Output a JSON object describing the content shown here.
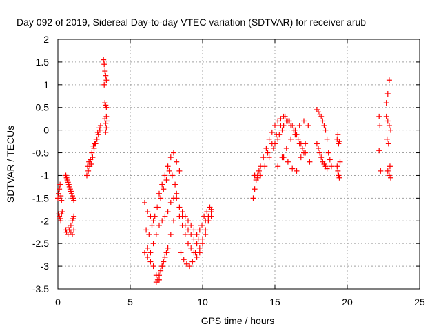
{
  "chart_data": {
    "type": "scatter",
    "title": "Day 092 of 2019, Sidereal Day-to-day VTEC variation (SDTVAR) for receiver arub",
    "xlabel": "GPS time / hours",
    "ylabel": "SDTVAR / TECUs",
    "xlim": [
      0,
      25
    ],
    "ylim": [
      -3.5,
      2
    ],
    "xticks": [
      0,
      5,
      10,
      15,
      20,
      25
    ],
    "xtick_labels": [
      "0",
      "5",
      "10",
      "15",
      "20",
      "25"
    ],
    "yticks": [
      -3.5,
      -3,
      -2.5,
      -2,
      -1.5,
      -1,
      -0.5,
      0,
      0.5,
      1,
      1.5,
      2
    ],
    "ytick_labels": [
      "-3.5",
      "-3",
      "-2.5",
      "-2",
      "-1.5",
      "-1",
      "-0.5",
      "0",
      "0.5",
      "1",
      "1.5",
      "2"
    ],
    "grid": true,
    "marker": "+",
    "color": "#ff0000",
    "series": [
      {
        "name": "SDTVAR",
        "x": [
          0.0,
          0.05,
          0.1,
          0.15,
          0.2,
          0.25,
          0.05,
          0.1,
          0.15,
          0.2,
          0.25,
          0.3,
          0.55,
          0.6,
          0.65,
          0.7,
          0.75,
          0.8,
          0.85,
          0.9,
          0.95,
          1.0,
          1.05,
          1.1,
          0.55,
          0.6,
          0.7,
          0.8,
          0.9,
          1.0,
          1.05,
          1.1,
          0.7,
          0.8,
          0.9,
          1.0,
          1.1,
          2.0,
          2.1,
          2.2,
          2.3,
          2.4,
          2.5,
          2.6,
          2.7,
          2.8,
          2.9,
          2.05,
          2.15,
          2.25,
          2.35,
          2.45,
          2.55,
          2.65,
          2.75,
          2.85,
          2.95,
          3.15,
          3.2,
          3.25,
          3.3,
          3.35,
          3.2,
          3.25,
          3.3,
          3.35,
          3.25,
          3.3,
          3.35,
          3.3,
          3.35,
          3.4,
          6.0,
          6.2,
          6.4,
          6.6,
          6.8,
          7.0,
          7.2,
          7.4,
          7.6,
          7.8,
          8.0,
          8.2,
          8.4,
          6.1,
          6.3,
          6.5,
          6.7,
          6.9,
          7.1,
          7.3,
          7.5,
          7.7,
          7.9,
          8.1,
          6.0,
          6.2,
          6.4,
          6.6,
          6.8,
          7.0,
          7.2,
          7.4,
          7.6,
          7.8,
          8.0,
          6.2,
          6.4,
          6.6,
          6.8,
          7.0,
          7.2,
          7.4,
          7.6,
          7.8,
          8.0,
          8.2,
          6.8,
          6.9,
          7.0,
          7.1,
          7.2,
          7.3,
          7.4,
          7.5,
          8.4,
          8.6,
          8.8,
          9.0,
          9.2,
          9.4,
          9.6,
          9.8,
          10.0,
          10.2,
          10.4,
          10.6,
          8.2,
          8.4,
          8.6,
          8.8,
          9.0,
          9.2,
          9.4,
          9.6,
          9.8,
          10.0,
          10.2,
          10.4,
          10.6,
          8.5,
          8.7,
          8.9,
          9.1,
          9.3,
          9.5,
          9.7,
          9.9,
          10.1,
          10.3,
          10.5,
          8.6,
          8.8,
          9.0,
          9.2,
          9.4,
          9.6,
          9.8,
          10.0,
          10.2,
          10.4,
          10.6,
          13.5,
          13.6,
          13.7,
          13.8,
          13.9,
          14.0,
          14.2,
          14.4,
          14.6,
          14.8,
          15.0,
          15.2,
          15.4,
          15.6,
          13.6,
          13.8,
          14.0,
          14.3,
          14.6,
          14.9,
          15.2,
          15.5,
          15.8,
          16.1,
          16.4,
          16.7,
          17.0,
          14.5,
          14.8,
          15.1,
          15.4,
          15.7,
          16.0,
          16.3,
          16.6,
          16.9,
          15.0,
          15.3,
          15.6,
          15.9,
          16.2,
          16.5,
          16.8,
          17.1,
          17.4,
          15.2,
          15.5,
          15.8,
          16.1,
          16.4,
          16.7,
          17.0,
          17.3,
          15.6,
          15.9,
          16.2,
          16.5,
          16.8,
          17.1,
          17.9,
          18.0,
          18.1,
          18.2,
          18.3,
          18.4,
          18.5,
          18.6,
          18.7,
          18.8,
          18.9,
          17.9,
          18.0,
          18.1,
          18.2,
          18.3,
          18.4,
          18.5,
          18.6,
          19.3,
          19.35,
          19.4,
          19.45,
          19.3,
          19.35,
          19.4,
          19.45,
          19.5,
          22.2,
          22.25,
          22.2,
          22.3,
          22.7,
          22.8,
          22.9,
          23.0,
          22.75,
          22.85,
          22.95,
          22.8,
          22.9,
          23.0,
          22.7,
          22.8,
          22.9
        ],
        "y": [
          -1.5,
          -1.4,
          -1.3,
          -1.2,
          -1.45,
          -1.55,
          -1.85,
          -1.9,
          -1.95,
          -2.0,
          -1.85,
          -1.8,
          -1.0,
          -1.05,
          -1.1,
          -1.15,
          -1.2,
          -1.25,
          -1.3,
          -1.35,
          -1.4,
          -1.45,
          -1.5,
          -1.55,
          -2.2,
          -2.25,
          -2.3,
          -2.2,
          -2.1,
          -2.0,
          -1.95,
          -1.9,
          -2.15,
          -2.2,
          -2.25,
          -2.3,
          -2.2,
          -1.0,
          -0.9,
          -0.8,
          -0.75,
          -0.6,
          -0.4,
          -0.3,
          -0.2,
          -0.1,
          0.0,
          -0.8,
          -0.7,
          -0.65,
          -0.5,
          -0.35,
          -0.3,
          -0.2,
          -0.05,
          0.05,
          0.1,
          1.55,
          1.45,
          1.3,
          1.2,
          1.1,
          1.0,
          0.6,
          0.55,
          0.5,
          0.25,
          0.15,
          0.05,
          -0.05,
          0.3,
          0.2,
          -1.6,
          -1.8,
          -1.9,
          -2.0,
          -1.7,
          -1.4,
          -1.2,
          -1.0,
          -0.8,
          -0.6,
          -0.5,
          -0.7,
          -0.9,
          -2.2,
          -2.3,
          -2.1,
          -1.9,
          -1.7,
          -1.5,
          -1.3,
          -1.1,
          -0.9,
          -1.0,
          -1.2,
          -2.7,
          -2.8,
          -2.9,
          -3.0,
          -3.2,
          -3.3,
          -3.0,
          -2.8,
          -2.6,
          -2.3,
          -2.0,
          -2.6,
          -2.7,
          -2.5,
          -2.3,
          -2.1,
          -2.0,
          -1.9,
          -1.8,
          -1.6,
          -1.5,
          -1.4,
          -3.35,
          -3.3,
          -3.2,
          -3.1,
          -3.0,
          -2.9,
          -2.8,
          -2.7,
          -1.9,
          -2.1,
          -2.3,
          -2.5,
          -2.6,
          -2.7,
          -2.8,
          -2.7,
          -2.5,
          -2.3,
          -2.0,
          -1.8,
          -1.5,
          -1.7,
          -1.9,
          -2.1,
          -2.2,
          -2.3,
          -2.4,
          -2.5,
          -2.6,
          -2.4,
          -2.2,
          -2.0,
          -1.9,
          -2.7,
          -2.85,
          -2.95,
          -3.0,
          -2.9,
          -2.7,
          -2.4,
          -2.1,
          -1.9,
          -1.8,
          -1.7,
          -1.8,
          -1.9,
          -2.0,
          -2.1,
          -2.2,
          -2.3,
          -2.2,
          -2.1,
          -2.0,
          -1.9,
          -1.75,
          -1.5,
          -1.3,
          -1.1,
          -1.0,
          -0.9,
          -0.8,
          -0.6,
          -0.4,
          -0.2,
          -0.05,
          0.1,
          0.2,
          0.25,
          0.3,
          -1.0,
          -1.05,
          -1.0,
          -0.8,
          -0.6,
          -0.4,
          -0.2,
          0.0,
          0.2,
          0.1,
          -0.1,
          -0.3,
          -0.5,
          -0.5,
          -0.3,
          -0.1,
          0.1,
          0.3,
          0.2,
          0.0,
          -0.2,
          -0.4,
          -0.3,
          -0.1,
          0.1,
          0.2,
          0.1,
          -0.1,
          -0.3,
          -0.5,
          -0.7,
          -0.8,
          -0.6,
          -0.4,
          -0.2,
          0.0,
          0.1,
          0.2,
          0.1,
          -0.6,
          -0.7,
          -0.85,
          -0.9,
          -0.6,
          -0.3,
          0.45,
          0.4,
          0.35,
          0.3,
          0.2,
          0.1,
          0.0,
          -0.2,
          -0.5,
          -0.65,
          -0.8,
          -0.3,
          -0.4,
          -0.5,
          -0.6,
          -0.7,
          -0.75,
          -0.8,
          -0.85,
          -0.2,
          -0.1,
          -0.3,
          -0.25,
          -0.8,
          -0.9,
          -1.0,
          -1.05,
          -0.7,
          0.3,
          0.1,
          -0.45,
          -0.9,
          0.3,
          0.2,
          0.1,
          0.0,
          -0.2,
          -0.3,
          -0.8,
          -0.9,
          -1.0,
          -1.05,
          0.6,
          0.8,
          1.1
        ]
      }
    ]
  }
}
